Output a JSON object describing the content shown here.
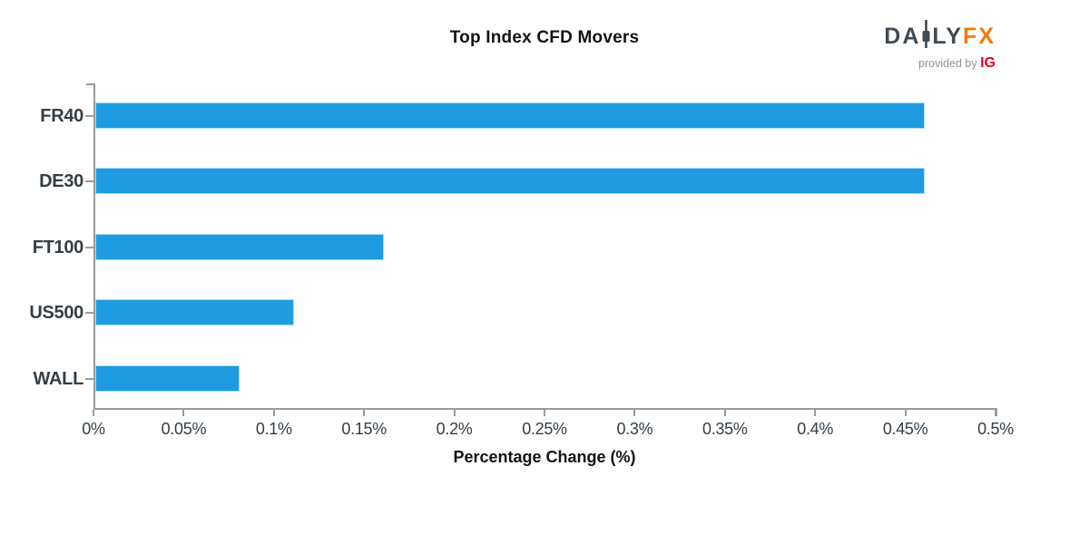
{
  "header": {
    "title": "Top Index CFD Movers",
    "logo": {
      "da": "DA",
      "ly": "LY",
      "fx": "FX",
      "provided_by": "provided by ",
      "ig": "IG",
      "colors": {
        "daily": "#414B56",
        "fx": "#F5790B",
        "provided_by": "#8B949E",
        "ig": "#E30021"
      }
    }
  },
  "chart_data": {
    "type": "bar",
    "orientation": "horizontal",
    "title": "Top Index CFD Movers",
    "categories": [
      "FR40",
      "DE30",
      "FT100",
      "US500",
      "WALL"
    ],
    "values": [
      0.46,
      0.46,
      0.16,
      0.11,
      0.08
    ],
    "xlabel": "Percentage Change (%)",
    "ylabel": "",
    "xlim": [
      0,
      0.5
    ],
    "x_ticks": [
      {
        "label": "0%",
        "value": 0
      },
      {
        "label": "0.05%",
        "value": 0.05
      },
      {
        "label": "0.1%",
        "value": 0.1
      },
      {
        "label": "0.15%",
        "value": 0.15
      },
      {
        "label": "0.2%",
        "value": 0.2
      },
      {
        "label": "0.25%",
        "value": 0.25
      },
      {
        "label": "0.3%",
        "value": 0.3
      },
      {
        "label": "0.35%",
        "value": 0.35
      },
      {
        "label": "0.4%",
        "value": 0.4
      },
      {
        "label": "0.45%",
        "value": 0.45
      },
      {
        "label": "0.5%",
        "value": 0.5
      }
    ],
    "grid": false,
    "legend": null,
    "bar_color": "#1E9BE1",
    "bar_edge_color": "#A9DCF7",
    "axis_color": "#9B9B9B",
    "label_color": "#333F48"
  }
}
